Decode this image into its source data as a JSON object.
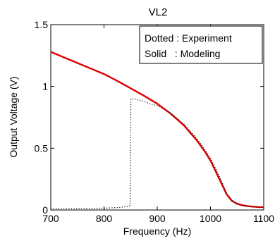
{
  "chart_data": {
    "type": "line",
    "title": "VL2",
    "xlabel": "Frequency (Hz)",
    "ylabel": "Output Voltage (V)",
    "xlim": [
      700,
      1100
    ],
    "ylim": [
      0,
      1.5
    ],
    "xticks": [
      "700",
      "800",
      "900",
      "1000",
      "1100"
    ],
    "yticks": [
      "0",
      "0.5",
      "1",
      "1.5"
    ],
    "grid": false,
    "legend_text": [
      "Dotted : Experiment",
      "Solid   : Modeling"
    ],
    "legend_position": "top-right",
    "series": [
      {
        "name": "Modeling",
        "style": "solid",
        "color": "#e00000",
        "x": [
          700,
          725,
          750,
          775,
          800,
          825,
          850,
          875,
          900,
          925,
          950,
          975,
          990,
          1000,
          1010,
          1020,
          1030,
          1040,
          1050,
          1060,
          1070,
          1080,
          1090,
          1100
        ],
        "y": [
          1.28,
          1.235,
          1.19,
          1.145,
          1.1,
          1.045,
          0.985,
          0.925,
          0.86,
          0.78,
          0.685,
          0.56,
          0.47,
          0.4,
          0.31,
          0.22,
          0.13,
          0.075,
          0.05,
          0.038,
          0.031,
          0.027,
          0.024,
          0.022
        ]
      },
      {
        "name": "Experiment",
        "style": "dotted",
        "color": "#000000",
        "x": [
          700,
          750,
          800,
          830,
          845,
          849,
          850,
          850.5,
          855,
          860,
          870,
          880,
          890,
          900,
          925,
          950,
          975,
          1000,
          1010,
          1020,
          1030,
          1040,
          1050,
          1060,
          1070,
          1080,
          1090,
          1100
        ],
        "y": [
          0.01,
          0.012,
          0.015,
          0.02,
          0.03,
          0.035,
          0.5,
          0.9,
          0.9,
          0.895,
          0.885,
          0.87,
          0.855,
          0.845,
          0.785,
          0.695,
          0.575,
          0.42,
          0.33,
          0.24,
          0.14,
          0.08,
          0.05,
          0.038,
          0.03,
          0.026,
          0.023,
          0.022
        ]
      }
    ]
  }
}
